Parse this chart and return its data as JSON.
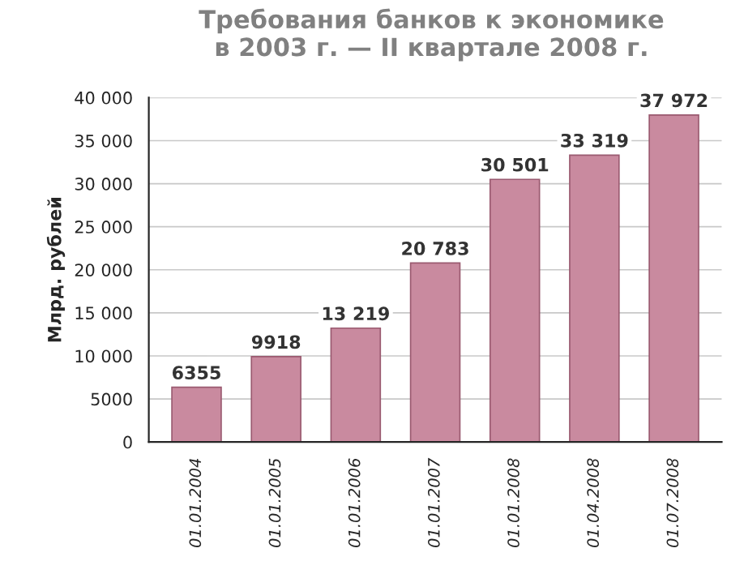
{
  "chart_data": {
    "type": "bar",
    "title": "Требования банков к экономике\nв 2003 г. — II квартале 2008 г.",
    "ylabel": "Млрд. рублей",
    "categories": [
      "01.01.2004",
      "01.01.2005",
      "01.01.2006",
      "01.01.2007",
      "01.01.2008",
      "01.04.2008",
      "01.07.2008"
    ],
    "values": [
      6355,
      9918,
      13219,
      20783,
      30501,
      33319,
      37972
    ],
    "value_labels": [
      "6355",
      "9918",
      "13 219",
      "20 783",
      "30 501",
      "33 319",
      "37 972"
    ],
    "color": "#c98a9f",
    "ylim": [
      0,
      40000
    ],
    "yticks": [
      0,
      {
        "value": 5000,
        "label": "5000"
      },
      {
        "value": 10000,
        "label": "10 000"
      },
      {
        "value": 15000,
        "label": "15 000"
      },
      {
        "value": 20000,
        "label": "20 000"
      },
      {
        "value": 25000,
        "label": "25 000"
      },
      {
        "value": 30000,
        "label": "30 000"
      },
      {
        "value": 35000,
        "label": "35 000"
      },
      {
        "value": 40000,
        "label": "40 000"
      }
    ],
    "grid": "y"
  }
}
